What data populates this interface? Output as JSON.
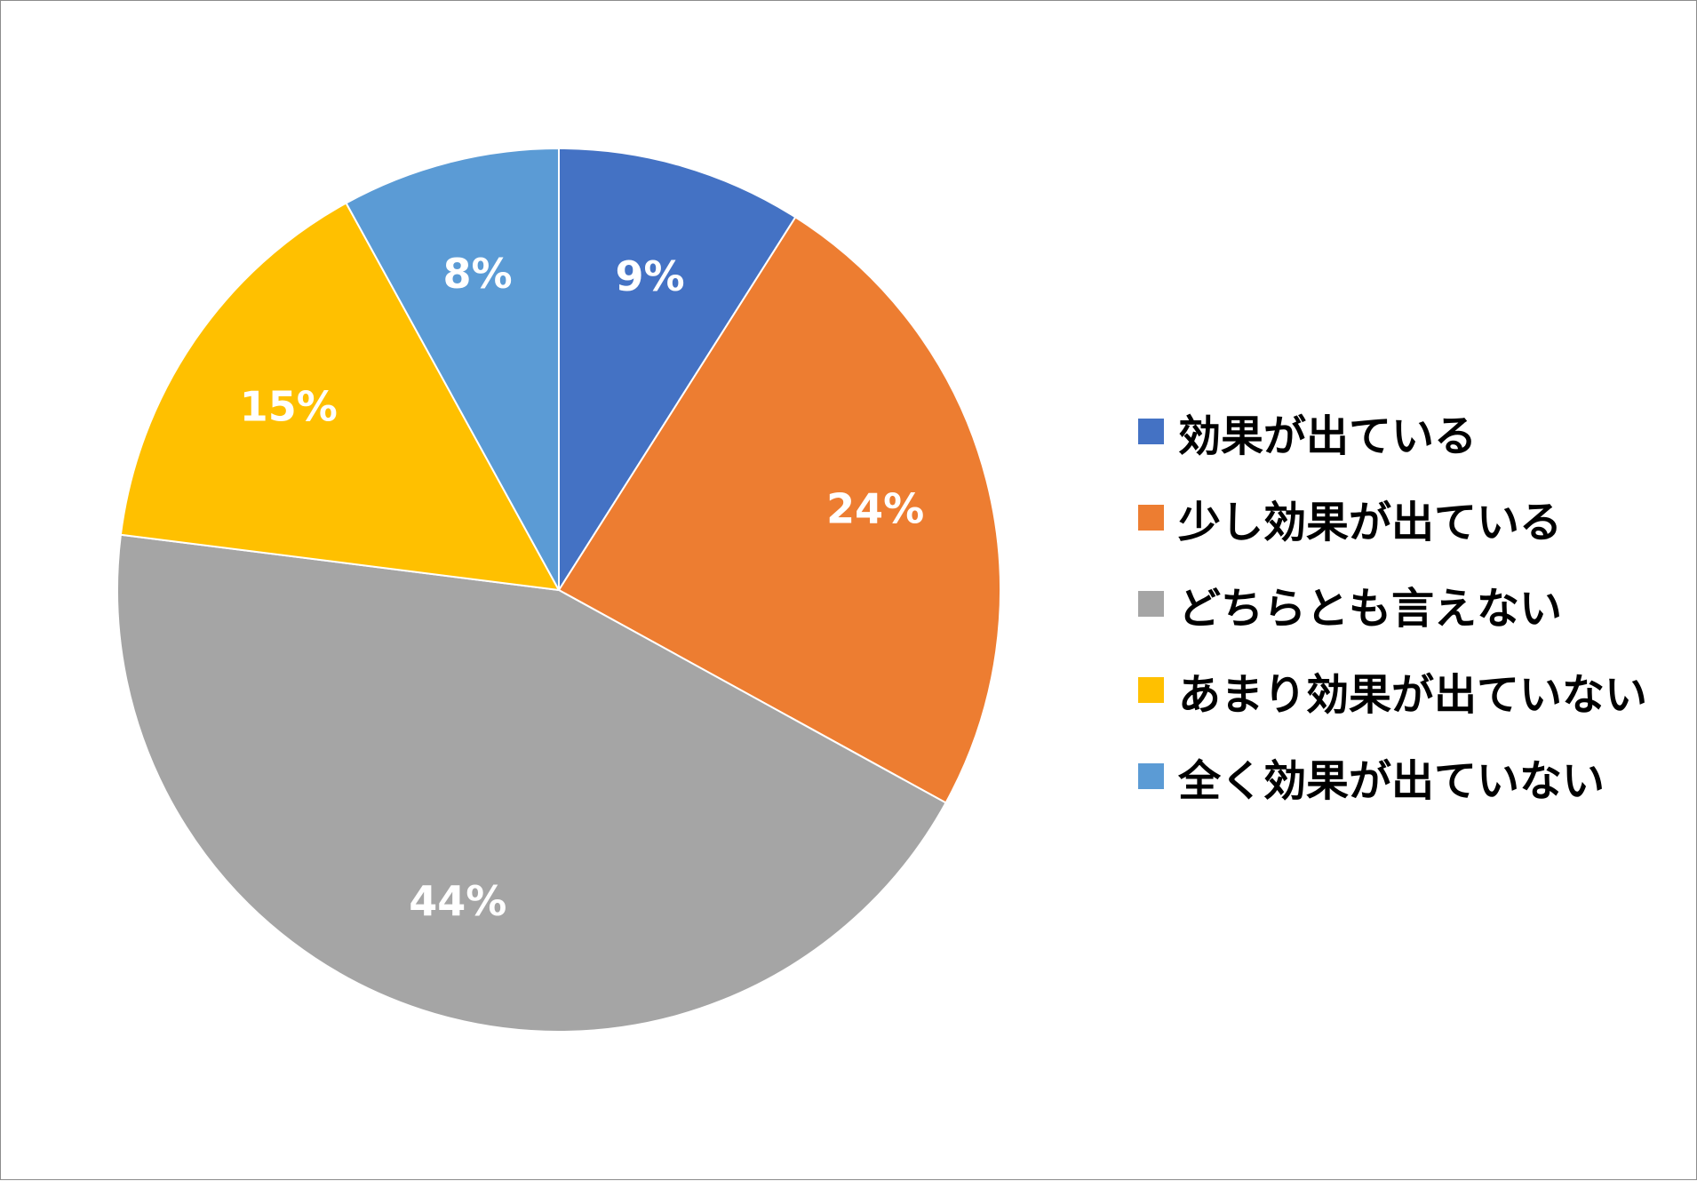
{
  "chart_data": {
    "type": "pie",
    "categories": [
      "効果が出ている",
      "少し効果が出ている",
      "どちらとも言えない",
      "あまり効果が出ていない",
      "全く効果が出ていない"
    ],
    "values": [
      9,
      24,
      44,
      15,
      8
    ],
    "data_labels": [
      "9%",
      "24%",
      "44%",
      "15%",
      "8%"
    ],
    "colors": [
      "#4472C4",
      "#ED7D31",
      "#A5A5A5",
      "#FFC000",
      "#5B9BD5"
    ],
    "start_angle_deg": 0,
    "direction": "clockwise",
    "legend_position": "right"
  },
  "legend": {
    "items": [
      {
        "label": "効果が出ている",
        "color": "#4472C4"
      },
      {
        "label": "少し効果が出ている",
        "color": "#ED7D31"
      },
      {
        "label": "どちらとも言えない",
        "color": "#A5A5A5"
      },
      {
        "label": "あまり効果が出ていない",
        "color": "#FFC000"
      },
      {
        "label": "全く効果が出ていない",
        "color": "#5B9BD5"
      }
    ]
  }
}
